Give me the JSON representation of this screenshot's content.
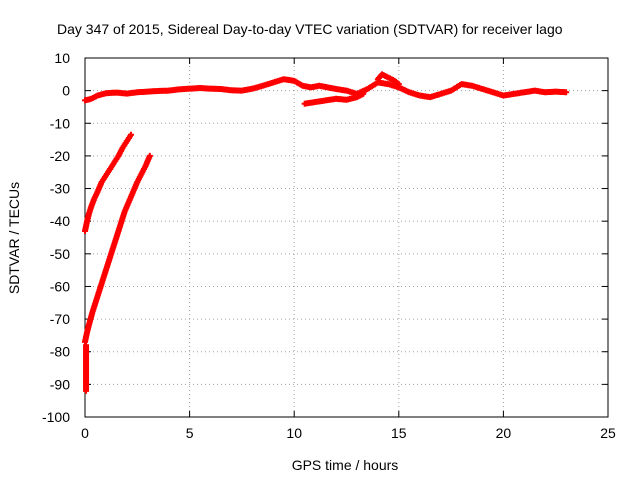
{
  "chart_data": {
    "type": "scatter",
    "title": "Day 347 of 2015, Sidereal Day-to-day VTEC variation (SDTVAR) for receiver lago",
    "xlabel": "GPS time / hours",
    "ylabel": "SDTVAR / TECUs",
    "xlim": [
      0,
      25
    ],
    "ylim": [
      -100,
      10
    ],
    "xticks": [
      0,
      5,
      10,
      15,
      20,
      25
    ],
    "yticks": [
      10,
      0,
      -10,
      -20,
      -30,
      -40,
      -50,
      -60,
      -70,
      -80,
      -90,
      -100
    ],
    "grid": true,
    "marker": "plus",
    "color": "#ff0000",
    "series": [
      {
        "points": [
          [
            0.0,
            -3.0
          ],
          [
            0.3,
            -2.5
          ],
          [
            0.6,
            -1.5
          ],
          [
            1.0,
            -0.8
          ],
          [
            1.5,
            -0.6
          ],
          [
            2.0,
            -0.9
          ],
          [
            2.5,
            -0.5
          ],
          [
            3.0,
            -0.3
          ],
          [
            3.5,
            -0.1
          ],
          [
            4.0,
            0.0
          ],
          [
            4.5,
            0.4
          ],
          [
            5.0,
            0.6
          ],
          [
            5.5,
            0.8
          ],
          [
            6.0,
            0.6
          ],
          [
            6.5,
            0.5
          ],
          [
            7.0,
            0.1
          ],
          [
            7.5,
            0.0
          ],
          [
            8.0,
            0.6
          ],
          [
            8.5,
            1.5
          ],
          [
            9.0,
            2.5
          ],
          [
            9.5,
            3.5
          ],
          [
            10.0,
            3.0
          ],
          [
            10.4,
            1.5
          ],
          [
            10.8,
            1.0
          ],
          [
            11.2,
            1.5
          ],
          [
            11.6,
            1.0
          ],
          [
            12.0,
            0.5
          ],
          [
            12.5,
            0.0
          ],
          [
            13.0,
            -1.0
          ],
          [
            13.5,
            0.5
          ],
          [
            14.0,
            2.5
          ],
          [
            14.5,
            2.0
          ],
          [
            15.0,
            1.0
          ],
          [
            15.5,
            -0.5
          ],
          [
            16.0,
            -1.5
          ],
          [
            16.5,
            -2.0
          ],
          [
            17.0,
            -1.0
          ],
          [
            17.5,
            0.0
          ],
          [
            18.0,
            2.0
          ],
          [
            18.5,
            1.5
          ],
          [
            19.0,
            0.5
          ],
          [
            19.5,
            -0.5
          ],
          [
            20.0,
            -1.5
          ],
          [
            20.5,
            -1.0
          ],
          [
            21.0,
            -0.5
          ],
          [
            21.5,
            0.0
          ],
          [
            22.0,
            -0.5
          ],
          [
            22.5,
            -0.3
          ],
          [
            23.0,
            -0.5
          ]
        ]
      },
      {
        "points": [
          [
            10.5,
            -4.0
          ],
          [
            11.0,
            -3.5
          ],
          [
            11.5,
            -3.0
          ],
          [
            12.0,
            -2.5
          ],
          [
            12.5,
            -2.8
          ],
          [
            13.0,
            -2.0
          ],
          [
            13.3,
            -1.0
          ]
        ]
      },
      {
        "points": [
          [
            14.0,
            3.5
          ],
          [
            14.2,
            5.0
          ],
          [
            14.5,
            4.0
          ],
          [
            14.8,
            3.0
          ],
          [
            15.0,
            2.0
          ]
        ]
      },
      {
        "points": [
          [
            0.0,
            -43.0
          ],
          [
            0.1,
            -40.0
          ],
          [
            0.2,
            -37.5
          ],
          [
            0.3,
            -35.5
          ],
          [
            0.45,
            -33.0
          ],
          [
            0.6,
            -31.0
          ],
          [
            0.8,
            -28.0
          ],
          [
            1.0,
            -26.0
          ],
          [
            1.2,
            -24.0
          ],
          [
            1.4,
            -22.0
          ],
          [
            1.6,
            -20.0
          ],
          [
            1.8,
            -17.5
          ],
          [
            2.0,
            -15.5
          ],
          [
            2.2,
            -13.5
          ]
        ]
      },
      {
        "points": [
          [
            0.0,
            -77.0
          ],
          [
            0.1,
            -74.0
          ],
          [
            0.2,
            -71.5
          ],
          [
            0.35,
            -68.0
          ],
          [
            0.5,
            -65.0
          ],
          [
            0.7,
            -61.0
          ],
          [
            0.9,
            -57.0
          ],
          [
            1.1,
            -53.0
          ],
          [
            1.3,
            -49.0
          ],
          [
            1.5,
            -45.0
          ],
          [
            1.7,
            -41.0
          ],
          [
            1.9,
            -37.0
          ],
          [
            2.1,
            -34.0
          ],
          [
            2.3,
            -31.0
          ],
          [
            2.5,
            -28.0
          ],
          [
            2.7,
            -25.5
          ],
          [
            2.9,
            -23.0
          ],
          [
            3.1,
            -20.0
          ]
        ]
      },
      {
        "points": [
          [
            0.05,
            -78.0
          ],
          [
            0.05,
            -80.0
          ],
          [
            0.05,
            -82.0
          ],
          [
            0.05,
            -84.0
          ],
          [
            0.05,
            -86.0
          ],
          [
            0.05,
            -88.0
          ],
          [
            0.05,
            -90.0
          ],
          [
            0.05,
            -92.0
          ]
        ]
      }
    ]
  }
}
